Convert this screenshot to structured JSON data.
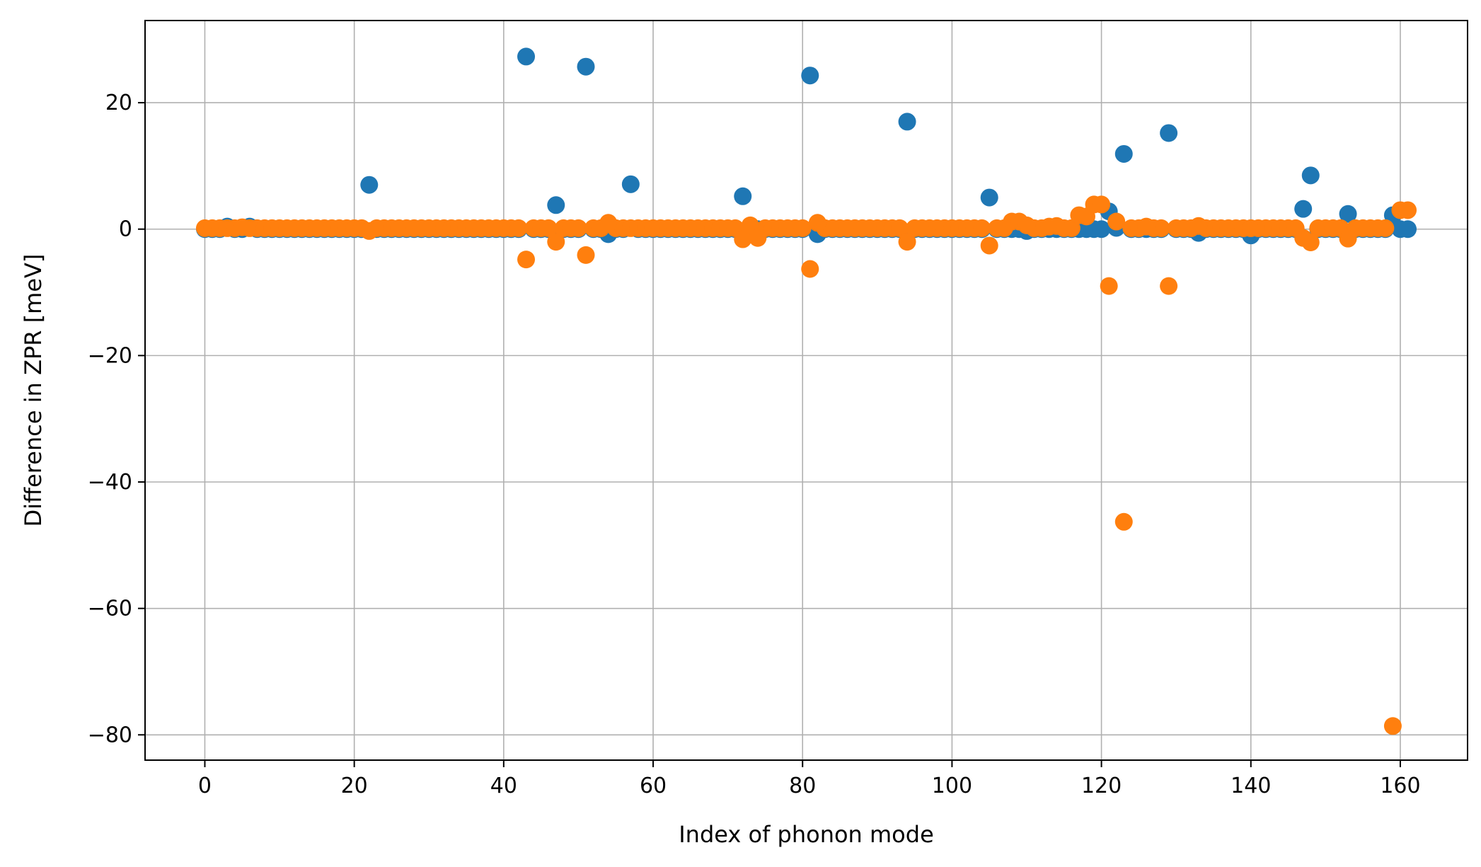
{
  "chart_data": {
    "type": "scatter",
    "title": "",
    "xlabel": "Index of phonon mode",
    "ylabel": "Difference in ZPR [meV]",
    "xlim": [
      -8,
      169
    ],
    "ylim": [
      -84,
      33
    ],
    "xticks": [
      0,
      20,
      40,
      60,
      80,
      100,
      120,
      140,
      160
    ],
    "yticks": [
      20,
      0,
      -20,
      -40,
      -60,
      -80
    ],
    "xtick_labels": [
      "0",
      "20",
      "40",
      "60",
      "80",
      "100",
      "120",
      "140",
      "160"
    ],
    "ytick_labels": [
      "20",
      "0",
      "−20",
      "−40",
      "−60",
      "−80"
    ],
    "grid": true,
    "legend": "none",
    "series": [
      {
        "color": "#1f77b4",
        "points": [
          [
            3,
            0.4
          ],
          [
            6,
            0.4
          ],
          [
            22,
            7
          ],
          [
            43,
            27.3
          ],
          [
            47,
            3.8
          ],
          [
            51,
            25.7
          ],
          [
            54,
            -0.8
          ],
          [
            57,
            7.1
          ],
          [
            72,
            5.2
          ],
          [
            81,
            24.3
          ],
          [
            82,
            -0.8
          ],
          [
            94,
            17
          ],
          [
            105,
            5
          ],
          [
            110,
            -0.3
          ],
          [
            121,
            2.8
          ],
          [
            122,
            0.2
          ],
          [
            123,
            11.9
          ],
          [
            129,
            15.2
          ],
          [
            133,
            -0.6
          ],
          [
            140,
            -1
          ],
          [
            147,
            3.2
          ],
          [
            148,
            8.5
          ],
          [
            153,
            2.4
          ],
          [
            159,
            2.2
          ],
          [
            161,
            0
          ]
        ],
        "baseline": [
          0,
          161,
          0
        ]
      },
      {
        "color": "#ff7f0e",
        "points": [
          [
            5,
            0.3
          ],
          [
            22,
            -0.3
          ],
          [
            43,
            -4.8
          ],
          [
            47,
            -2
          ],
          [
            51,
            -4.1
          ],
          [
            54,
            1
          ],
          [
            72,
            -1.6
          ],
          [
            73,
            0.6
          ],
          [
            74,
            -1.4
          ],
          [
            81,
            -6.3
          ],
          [
            82,
            1
          ],
          [
            94,
            -2
          ],
          [
            105,
            -2.6
          ],
          [
            108,
            1.2
          ],
          [
            109,
            1.2
          ],
          [
            110,
            0.6
          ],
          [
            113,
            0.4
          ],
          [
            114,
            0.5
          ],
          [
            117,
            2.2
          ],
          [
            118,
            2
          ],
          [
            119,
            3.9
          ],
          [
            120,
            3.9
          ],
          [
            121,
            -9
          ],
          [
            122,
            1.2
          ],
          [
            123,
            -46.3
          ],
          [
            126,
            0.4
          ],
          [
            129,
            -9
          ],
          [
            133,
            0.5
          ],
          [
            147,
            -1.4
          ],
          [
            148,
            -2.1
          ],
          [
            153,
            -1.5
          ],
          [
            159,
            -78.6
          ],
          [
            160,
            3
          ],
          [
            161,
            3
          ]
        ],
        "baseline": [
          0,
          161,
          0.15
        ]
      }
    ]
  }
}
